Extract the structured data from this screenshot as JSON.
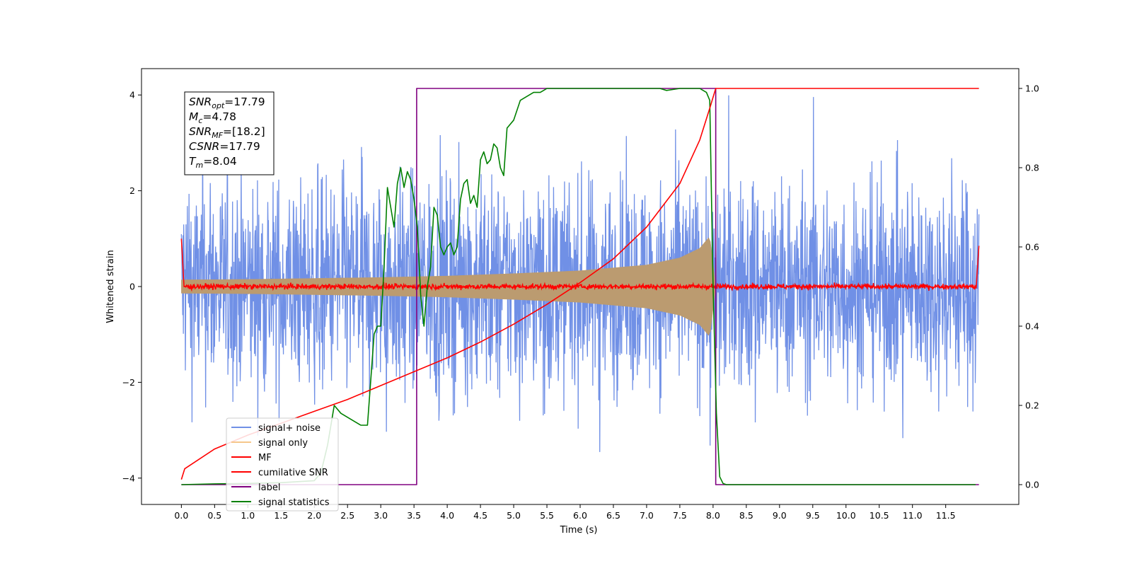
{
  "chart_data": {
    "type": "line",
    "xlabel": "Time (s)",
    "ylabel": "Whitened strain",
    "xlim": [
      -0.6,
      12.6
    ],
    "ylim": [
      -4.55,
      4.55
    ],
    "y2lim": [
      -0.05,
      1.05
    ],
    "x_ticks": [
      "0.0",
      "0.5",
      "1.0",
      "1.5",
      "2.0",
      "2.5",
      "3.0",
      "3.5",
      "4.0",
      "4.5",
      "5.0",
      "5.5",
      "6.0",
      "6.5",
      "7.0",
      "7.5",
      "8.0",
      "8.5",
      "9.0",
      "9.5",
      "10.0",
      "10.5",
      "11.0",
      "11.5"
    ],
    "y_ticks": [
      "4",
      "2",
      "0",
      "−2",
      "−4"
    ],
    "y2_ticks": [
      "1.0",
      "0.8",
      "0.6",
      "0.4",
      "0.2",
      "0.0"
    ],
    "annotation": {
      "line1_base": "SNR",
      "line1_sub": "opt",
      "line1_val": "=17.79",
      "line2_base": "M",
      "line2_sub": "c",
      "line2_val": "=4.78",
      "line3_base": "SNR",
      "line3_sub": "MF",
      "line3_val": "=[18.2]",
      "line4_base": "CSNR",
      "line4_val": "=17.79",
      "line5_base": "T",
      "line5_sub": "m",
      "line5_val": "=8.04"
    },
    "legend_position": "lower-left",
    "legend": [
      "signal+ noise",
      "signal only",
      "MF",
      "cumilative SNR",
      "label",
      "signal statistics"
    ],
    "series": [
      {
        "name": "signal+ noise",
        "color": "#7090e6",
        "axis": "left",
        "x_range": [
          0.0,
          12.0
        ],
        "approx_amplitude": 2.6,
        "note_values_are_noise": true
      },
      {
        "name": "signal only",
        "color": "#bb9b70",
        "axis": "left",
        "envelope": {
          "x": [
            0.0,
            1.0,
            2.0,
            3.0,
            4.0,
            5.0,
            6.0,
            7.0,
            7.5,
            7.8,
            7.95,
            8.04
          ],
          "amp": [
            0.14,
            0.15,
            0.17,
            0.19,
            0.22,
            0.27,
            0.33,
            0.45,
            0.6,
            0.8,
            1.05,
            0.0
          ]
        }
      },
      {
        "name": "MF",
        "color": "#ff0000",
        "axis": "left",
        "edges": {
          "start": 1.0,
          "end": 0.85
        },
        "baseline": 0.0,
        "noise_amplitude": 0.08
      },
      {
        "name": "cumilative SNR",
        "color": "#ff0000",
        "axis": "right",
        "x": [
          0.0,
          0.05,
          0.5,
          1.0,
          1.5,
          2.0,
          2.5,
          3.0,
          3.5,
          4.0,
          4.5,
          5.0,
          5.5,
          6.0,
          6.5,
          7.0,
          7.5,
          7.8,
          7.95,
          8.04,
          8.05,
          12.0
        ],
        "values": [
          0.013,
          0.04,
          0.09,
          0.125,
          0.155,
          0.185,
          0.215,
          0.25,
          0.285,
          0.32,
          0.36,
          0.405,
          0.455,
          0.51,
          0.57,
          0.65,
          0.76,
          0.87,
          0.95,
          1.0,
          1.0,
          1.0
        ]
      },
      {
        "name": "label",
        "color": "#800080",
        "axis": "right",
        "x": [
          0.0,
          3.54,
          3.54,
          8.04,
          8.04,
          12.0
        ],
        "values": [
          0.0,
          0.0,
          1.0,
          1.0,
          0.0,
          0.0
        ]
      },
      {
        "name": "signal statistics",
        "color": "#008000",
        "axis": "right",
        "x": [
          0.0,
          0.5,
          1.0,
          1.5,
          2.0,
          2.1,
          2.2,
          2.3,
          2.4,
          2.5,
          2.6,
          2.7,
          2.8,
          2.9,
          2.95,
          3.0,
          3.05,
          3.1,
          3.15,
          3.2,
          3.25,
          3.3,
          3.35,
          3.4,
          3.45,
          3.5,
          3.55,
          3.6,
          3.65,
          3.7,
          3.75,
          3.8,
          3.85,
          3.9,
          3.95,
          4.0,
          4.05,
          4.1,
          4.15,
          4.2,
          4.25,
          4.3,
          4.35,
          4.4,
          4.45,
          4.5,
          4.55,
          4.6,
          4.65,
          4.7,
          4.75,
          4.8,
          4.85,
          4.9,
          5.0,
          5.1,
          5.2,
          5.3,
          5.4,
          5.5,
          5.6,
          5.7,
          5.8,
          5.9,
          6.0,
          6.5,
          7.0,
          7.2,
          7.3,
          7.5,
          7.8,
          7.9,
          7.95,
          8.0,
          8.05,
          8.1,
          8.15,
          8.2,
          8.5,
          9.0,
          10.0,
          11.0,
          11.95
        ],
        "values": [
          0.0,
          0.002,
          0.003,
          0.005,
          0.01,
          0.03,
          0.1,
          0.2,
          0.18,
          0.17,
          0.16,
          0.15,
          0.15,
          0.38,
          0.4,
          0.4,
          0.55,
          0.75,
          0.7,
          0.65,
          0.76,
          0.8,
          0.75,
          0.79,
          0.77,
          0.72,
          0.65,
          0.48,
          0.4,
          0.5,
          0.55,
          0.7,
          0.68,
          0.6,
          0.58,
          0.6,
          0.61,
          0.58,
          0.6,
          0.72,
          0.76,
          0.77,
          0.71,
          0.73,
          0.7,
          0.82,
          0.84,
          0.81,
          0.82,
          0.86,
          0.85,
          0.8,
          0.78,
          0.9,
          0.92,
          0.97,
          0.98,
          0.99,
          0.99,
          1.0,
          1.0,
          1.0,
          1.0,
          1.0,
          1.0,
          1.0,
          1.0,
          1.0,
          0.995,
          1.0,
          1.0,
          0.99,
          0.97,
          0.5,
          0.18,
          0.02,
          0.003,
          0.0,
          0.0,
          0.0,
          0.0,
          0.0,
          0.0
        ]
      }
    ]
  }
}
